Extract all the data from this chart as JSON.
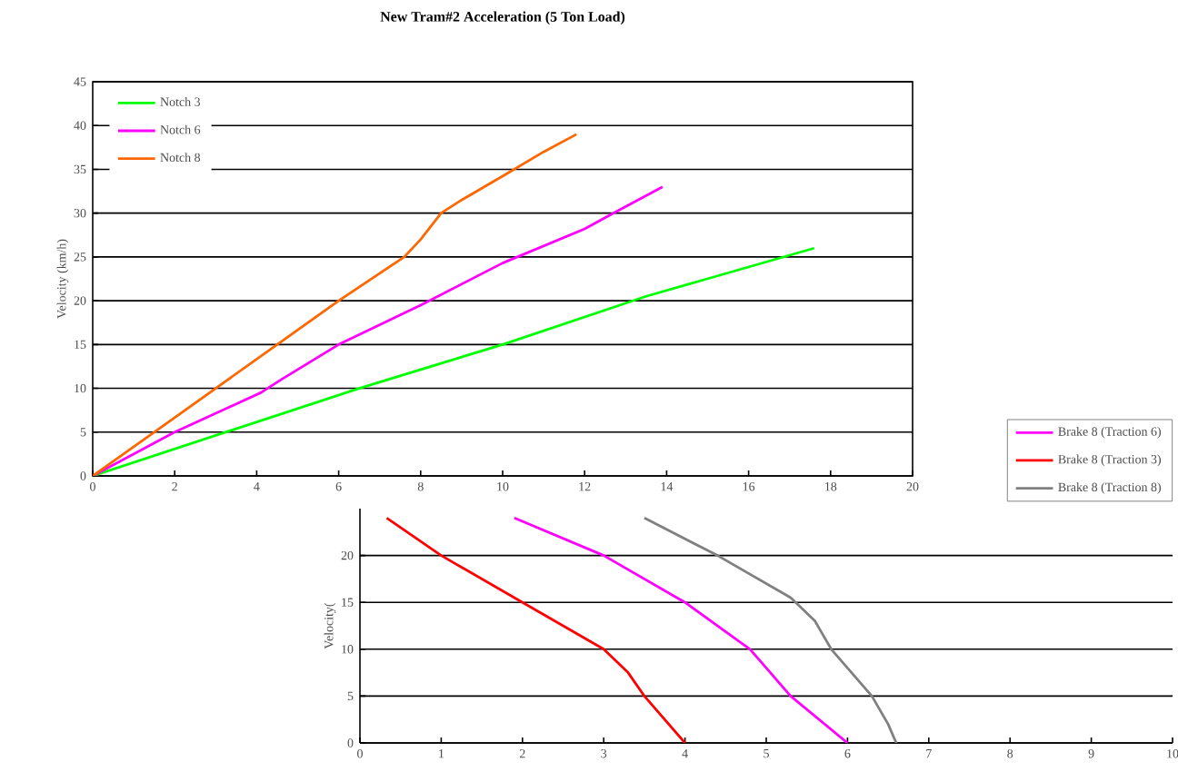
{
  "chart_data": [
    {
      "type": "line",
      "title": "New Tram#2 Acceleration (5 Ton Load)",
      "ylabel": "Velocity (km/h)",
      "xlim": [
        0,
        20
      ],
      "ylim": [
        0,
        45
      ],
      "xticks": [
        0,
        2,
        4,
        6,
        8,
        10,
        12,
        14,
        16,
        18,
        20
      ],
      "yticks": [
        0,
        5,
        10,
        15,
        20,
        25,
        30,
        35,
        40,
        45
      ],
      "grid": "y",
      "legend": "top left",
      "marker": "none",
      "line_style": "solid",
      "series": [
        {
          "name": "Notch 3",
          "color": "#00ff00",
          "x": [
            0,
            6.5,
            10,
            13.5,
            17.6
          ],
          "values": [
            0,
            10,
            15,
            20.5,
            26
          ]
        },
        {
          "name": "Notch 6",
          "color": "#ff00ff",
          "x": [
            0,
            2,
            4.1,
            4.6,
            6,
            8,
            10,
            12,
            12.7,
            13.9
          ],
          "values": [
            0,
            5,
            9.5,
            11,
            15,
            19.5,
            24.3,
            28.2,
            30,
            33
          ]
        },
        {
          "name": "Notch 8",
          "color": "#ff6600",
          "x": [
            0,
            1.5,
            3,
            4.5,
            6,
            7.6,
            8,
            8.5,
            9,
            10.1,
            11,
            11.8
          ],
          "values": [
            0,
            5,
            10,
            15,
            20,
            25,
            27,
            30,
            31.5,
            34.5,
            37,
            39
          ]
        }
      ]
    },
    {
      "type": "line",
      "ylabel": "Velocity(",
      "xlim": [
        0,
        10
      ],
      "ylim": [
        0,
        25
      ],
      "xticks": [
        0,
        1,
        2,
        3,
        4,
        5,
        6,
        7,
        8,
        9,
        10
      ],
      "yticks": [
        0,
        5,
        10,
        15,
        20
      ],
      "grid": "y",
      "legend": "top right",
      "marker": "none",
      "line_style": "solid",
      "series": [
        {
          "name": "Brake 8 (Traction 6)",
          "color": "#ff00ff",
          "x": [
            1.9,
            3,
            4,
            4.8,
            5,
            5.3,
            6
          ],
          "values": [
            24,
            20,
            15,
            10,
            8,
            5,
            0
          ]
        },
        {
          "name": "Brake 8 (Traction 3)",
          "color": "#ff0000",
          "x": [
            0.33,
            1,
            2,
            3,
            3.3,
            3.5,
            4
          ],
          "values": [
            24,
            20,
            15,
            10,
            7.5,
            5,
            0
          ]
        },
        {
          "name": "Brake 8 (Traction 8)",
          "color": "#808080",
          "x": [
            3.5,
            4.4,
            5.3,
            5.6,
            5.8,
            6.3,
            6.5,
            6.6
          ],
          "values": [
            24,
            20,
            15.5,
            13,
            10,
            5,
            2,
            0
          ]
        }
      ]
    }
  ]
}
